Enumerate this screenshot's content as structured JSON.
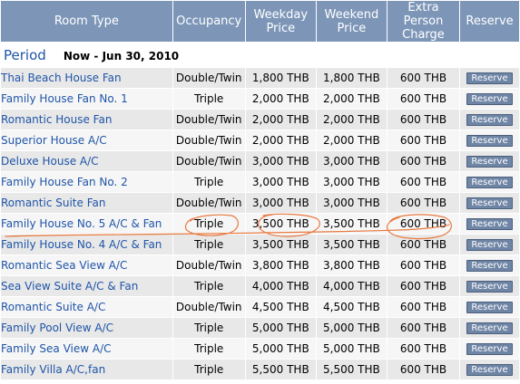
{
  "headers": {
    "room_type": "Room Type",
    "occupancy": "Occupancy",
    "weekday_line1": "Weekday",
    "weekday_line2": "Price",
    "weekend_line1": "Weekend",
    "weekend_line2": "Price",
    "extra_line1": "Extra",
    "extra_line2": "Person",
    "extra_line3": "Charge",
    "reserve": "Reserve"
  },
  "period": {
    "label": "Period",
    "range": "Now - Jun 30, 2010"
  },
  "reserve_label": "Reserve",
  "colors": {
    "header_bg": "#7d96b8",
    "link": "#1f55a8",
    "annotation": "#e87a40",
    "button_bg": "#6f85a5"
  },
  "annotation": {
    "description": "hand-drawn orange circles and underline marking Family House No. 5 A/C & Fan row"
  },
  "rooms": [
    {
      "name": "Thai Beach House Fan",
      "occupancy": "Double/Twin",
      "weekday": "1,800 THB",
      "weekend": "1,800 THB",
      "extra": "600 THB"
    },
    {
      "name": "Family House Fan No. 1",
      "occupancy": "Triple",
      "weekday": "2,000 THB",
      "weekend": "2,000 THB",
      "extra": "600 THB"
    },
    {
      "name": "Romantic House Fan",
      "occupancy": "Double/Twin",
      "weekday": "2,000 THB",
      "weekend": "2,000 THB",
      "extra": "600 THB"
    },
    {
      "name": "Superior House A/C",
      "occupancy": "Double/Twin",
      "weekday": "2,000 THB",
      "weekend": "2,000 THB",
      "extra": "600 THB"
    },
    {
      "name": "Deluxe House A/C",
      "occupancy": "Double/Twin",
      "weekday": "3,000 THB",
      "weekend": "3,000 THB",
      "extra": "600 THB"
    },
    {
      "name": "Family House Fan No. 2",
      "occupancy": "Triple",
      "weekday": "3,000 THB",
      "weekend": "3,000 THB",
      "extra": "600 THB"
    },
    {
      "name": "Romantic Suite Fan",
      "occupancy": "Double/Twin",
      "weekday": "3,000 THB",
      "weekend": "3,000 THB",
      "extra": "600 THB"
    },
    {
      "name": "Family House No. 5 A/C & Fan",
      "occupancy": "Triple",
      "weekday": "3,500 THB",
      "weekend": "3,500 THB",
      "extra": "600 THB"
    },
    {
      "name": "Family House No. 4 A/C & Fan",
      "occupancy": "Triple",
      "weekday": "3,500 THB",
      "weekend": "3,500 THB",
      "extra": "600 THB"
    },
    {
      "name": "Romantic Sea View A/C",
      "occupancy": "Double/Twin",
      "weekday": "3,800 THB",
      "weekend": "3,800 THB",
      "extra": "600 THB"
    },
    {
      "name": "Sea View Suite A/C & Fan",
      "occupancy": "Triple",
      "weekday": "4,000 THB",
      "weekend": "4,000 THB",
      "extra": "600 THB"
    },
    {
      "name": "Romantic Suite A/C",
      "occupancy": "Double/Twin",
      "weekday": "4,500 THB",
      "weekend": "4,500 THB",
      "extra": "600 THB"
    },
    {
      "name": "Family Pool View A/C",
      "occupancy": "Triple",
      "weekday": "5,000 THB",
      "weekend": "5,000 THB",
      "extra": "600 THB"
    },
    {
      "name": "Family Sea View A/C",
      "occupancy": "Triple",
      "weekday": "5,000 THB",
      "weekend": "5,000 THB",
      "extra": "600 THB"
    },
    {
      "name": "Family Villa A/C,fan",
      "occupancy": "Triple",
      "weekday": "5,500 THB",
      "weekend": "5,500 THB",
      "extra": "600 THB"
    }
  ]
}
